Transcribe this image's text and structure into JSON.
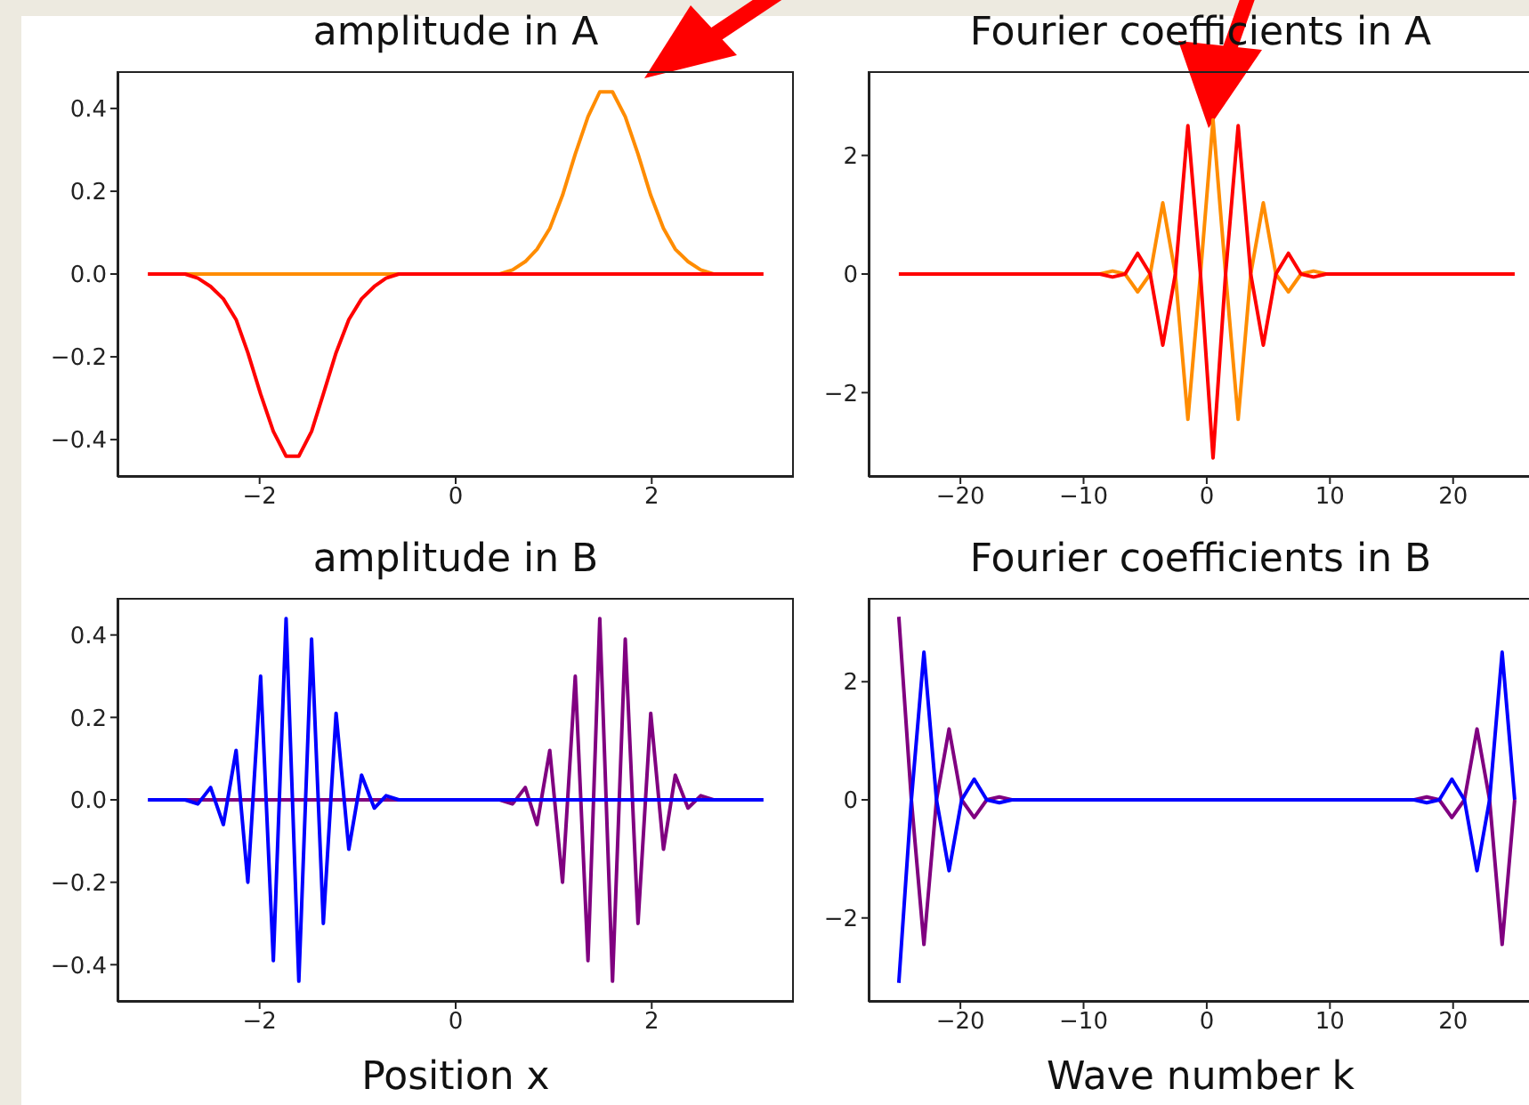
{
  "chart_data": [
    {
      "type": "line",
      "title": "amplitude in A",
      "x": [
        -3.14,
        -3.01,
        -2.89,
        -2.76,
        -2.63,
        -2.5,
        -2.37,
        -2.24,
        -2.12,
        -1.99,
        -1.86,
        -1.73,
        -1.6,
        -1.47,
        -1.35,
        -1.22,
        -1.09,
        -0.96,
        -0.83,
        -0.71,
        -0.58,
        -0.45,
        -0.32,
        -0.19,
        -0.06,
        0.06,
        0.19,
        0.32,
        0.45,
        0.58,
        0.71,
        0.83,
        0.96,
        1.09,
        1.22,
        1.35,
        1.47,
        1.6,
        1.73,
        1.86,
        1.99,
        2.12,
        2.24,
        2.37,
        2.5,
        2.63,
        2.76,
        2.89,
        3.01,
        3.14
      ],
      "series": [
        {
          "color": "#ff8c00",
          "values": [
            null,
            null,
            0,
            0,
            0,
            0,
            0,
            0,
            0,
            0,
            0,
            0,
            0,
            0,
            0,
            0,
            0,
            0,
            0,
            0,
            0,
            0,
            0,
            0,
            0,
            0,
            0,
            0,
            0,
            0.01,
            0.03,
            0.06,
            0.11,
            0.19,
            0.29,
            0.38,
            0.44,
            0.44,
            0.38,
            0.29,
            0.19,
            0.11,
            0.06,
            0.03,
            0.01,
            0,
            0,
            null,
            null,
            null
          ]
        },
        {
          "color": "#ff0000",
          "values": [
            0,
            0,
            0,
            0,
            -0.01,
            -0.03,
            -0.06,
            -0.11,
            -0.19,
            -0.29,
            -0.38,
            -0.44,
            -0.44,
            -0.38,
            -0.29,
            -0.19,
            -0.11,
            -0.06,
            -0.03,
            -0.01,
            0,
            0,
            0,
            0,
            0,
            0,
            0,
            0,
            0,
            0,
            0,
            0,
            0,
            0,
            0,
            0,
            0,
            0,
            0,
            0,
            0,
            0,
            0,
            0,
            0,
            0,
            0,
            0,
            0,
            0
          ]
        }
      ],
      "xlim": [
        -3.45,
        3.45
      ],
      "ylim": [
        -0.49,
        0.49
      ],
      "xticks": [
        {
          "value": -2,
          "label": "−2"
        },
        0,
        2
      ],
      "yticks": [
        {
          "value": -0.4,
          "label": "−0.4"
        },
        {
          "value": -0.2,
          "label": "−0.2"
        },
        {
          "value": 0,
          "label": "0.0"
        },
        0.2,
        0.4
      ]
    },
    {
      "type": "line",
      "title": "Fourier coefficients in A",
      "x": [
        -25,
        -23.98,
        -22.96,
        -21.94,
        -20.92,
        -19.9,
        -18.88,
        -17.86,
        -16.84,
        -15.82,
        -14.8,
        -13.78,
        -12.76,
        -11.73,
        -10.71,
        -9.69,
        -8.67,
        -7.65,
        -6.63,
        -5.61,
        -4.59,
        -3.57,
        -2.55,
        -1.53,
        -0.51,
        0.51,
        1.53,
        2.55,
        3.57,
        4.59,
        5.61,
        6.63,
        7.65,
        8.67,
        9.69,
        10.71,
        11.73,
        12.76,
        13.78,
        14.8,
        15.82,
        16.84,
        17.86,
        18.88,
        19.9,
        20.92,
        21.94,
        22.96,
        23.98,
        25
      ],
      "series": [
        {
          "color": "#ff8c00",
          "values": [
            null,
            null,
            null,
            null,
            null,
            null,
            null,
            null,
            null,
            null,
            null,
            null,
            null,
            null,
            null,
            null,
            0,
            0.05,
            0,
            -0.3,
            0,
            1.2,
            0,
            -2.45,
            0,
            2.6,
            0,
            -2.45,
            0,
            1.2,
            0,
            -0.3,
            0,
            0.05,
            0,
            null,
            null,
            null,
            null,
            null,
            null,
            null,
            null,
            null,
            null,
            null,
            null,
            null,
            null,
            null
          ]
        },
        {
          "color": "#ff0000",
          "values": [
            0,
            0,
            0,
            0,
            0,
            0,
            0,
            0,
            0,
            0,
            0,
            0,
            0,
            0,
            0,
            0,
            0,
            -0.05,
            0,
            0.35,
            0,
            -1.2,
            0,
            2.5,
            0,
            -3.1,
            0,
            2.5,
            0,
            -1.2,
            0,
            0.35,
            0,
            -0.05,
            0,
            0,
            0,
            0,
            0,
            0,
            0,
            0,
            0,
            0,
            0,
            0,
            0,
            0,
            0,
            0
          ]
        }
      ],
      "xlim": [
        -27.45,
        26.45
      ],
      "ylim": [
        -3.42,
        3.42
      ],
      "xticks": [
        {
          "value": -20,
          "label": "−20"
        },
        {
          "value": -10,
          "label": "−10"
        },
        0,
        10,
        20
      ],
      "yticks": [
        {
          "value": -2,
          "label": "−2"
        },
        0,
        2
      ]
    },
    {
      "type": "line",
      "title": "amplitude in B",
      "xlabel": "Position x",
      "x": [
        -3.14,
        -3.01,
        -2.89,
        -2.76,
        -2.63,
        -2.5,
        -2.37,
        -2.24,
        -2.12,
        -1.99,
        -1.86,
        -1.73,
        -1.6,
        -1.47,
        -1.35,
        -1.22,
        -1.09,
        -0.96,
        -0.83,
        -0.71,
        -0.58,
        -0.45,
        -0.32,
        -0.19,
        -0.06,
        0.06,
        0.19,
        0.32,
        0.45,
        0.58,
        0.71,
        0.83,
        0.96,
        1.09,
        1.22,
        1.35,
        1.47,
        1.6,
        1.73,
        1.86,
        1.99,
        2.12,
        2.24,
        2.37,
        2.5,
        2.63,
        2.76,
        2.89,
        3.01,
        3.14
      ],
      "series": [
        {
          "color": "#800080",
          "values": [
            null,
            null,
            0,
            0,
            0,
            0,
            0,
            0,
            0,
            0,
            0,
            0,
            0,
            0,
            0,
            0,
            0,
            0,
            0,
            0,
            0,
            0,
            0,
            0,
            0,
            0,
            0,
            0,
            0,
            -0.01,
            0.03,
            -0.06,
            0.12,
            -0.2,
            0.3,
            -0.39,
            0.44,
            -0.44,
            0.39,
            -0.3,
            0.21,
            -0.12,
            0.06,
            -0.02,
            0.01,
            0,
            0,
            null,
            null,
            null
          ]
        },
        {
          "color": "#0000ff",
          "values": [
            0,
            0,
            0,
            0,
            -0.01,
            0.03,
            -0.06,
            0.12,
            -0.2,
            0.3,
            -0.39,
            0.44,
            -0.44,
            0.39,
            -0.3,
            0.21,
            -0.12,
            0.06,
            -0.02,
            0.01,
            0,
            0,
            0,
            0,
            0,
            0,
            0,
            0,
            0,
            0,
            0,
            0,
            0,
            0,
            0,
            0,
            0,
            0,
            0,
            0,
            0,
            0,
            0,
            0,
            0,
            0,
            0,
            0,
            0,
            0
          ]
        }
      ],
      "xlim": [
        -3.45,
        3.45
      ],
      "ylim": [
        -0.49,
        0.49
      ],
      "xticks": [
        {
          "value": -2,
          "label": "−2"
        },
        0,
        2
      ],
      "yticks": [
        {
          "value": -0.4,
          "label": "−0.4"
        },
        {
          "value": -0.2,
          "label": "−0.2"
        },
        {
          "value": 0,
          "label": "0.0"
        },
        0.2,
        0.4
      ]
    },
    {
      "type": "line",
      "title": "Fourier coefficients in B",
      "xlabel": "Wave number k",
      "x": [
        -25,
        -23.98,
        -22.96,
        -21.94,
        -20.92,
        -19.9,
        -18.88,
        -17.86,
        -16.84,
        -15.82,
        -14.8,
        -13.78,
        -12.76,
        -11.73,
        -10.71,
        -9.69,
        -8.67,
        -7.65,
        -6.63,
        -5.61,
        -4.59,
        -3.57,
        -2.55,
        -1.53,
        -0.51,
        0.51,
        1.53,
        2.55,
        3.57,
        4.59,
        5.61,
        6.63,
        7.65,
        8.67,
        9.69,
        10.71,
        11.73,
        12.76,
        13.78,
        14.8,
        15.82,
        16.84,
        17.86,
        18.88,
        19.9,
        20.92,
        21.94,
        22.96,
        23.98,
        25
      ],
      "series": [
        {
          "color": "#800080",
          "values": [
            3.1,
            0,
            -2.45,
            0,
            1.2,
            0,
            -0.3,
            0,
            0.05,
            0,
            null,
            null,
            null,
            null,
            null,
            null,
            null,
            null,
            null,
            null,
            null,
            null,
            null,
            null,
            null,
            null,
            null,
            null,
            null,
            null,
            null,
            null,
            null,
            null,
            null,
            null,
            null,
            null,
            null,
            null,
            null,
            0,
            0.05,
            0,
            -0.3,
            0,
            1.2,
            0,
            -2.45,
            0
          ]
        },
        {
          "color": "#0000ff",
          "values": [
            -3.1,
            0,
            2.5,
            0,
            -1.2,
            0,
            0.35,
            0,
            -0.05,
            0,
            0,
            0,
            0,
            0,
            0,
            0,
            0,
            0,
            0,
            0,
            0,
            0,
            0,
            0,
            0,
            0,
            0,
            0,
            0,
            0,
            0,
            0,
            0,
            0,
            0,
            0,
            0,
            0,
            0,
            0,
            0,
            0,
            -0.05,
            0,
            0.35,
            0,
            -1.2,
            0,
            2.5,
            0
          ]
        }
      ],
      "xlim": [
        -27.45,
        26.45
      ],
      "ylim": [
        -3.42,
        3.42
      ],
      "xticks": [
        {
          "value": -20,
          "label": "−20"
        },
        {
          "value": -10,
          "label": "−10"
        },
        0,
        10,
        20
      ],
      "yticks": [
        {
          "value": -2,
          "label": "−2"
        },
        0,
        2
      ]
    }
  ]
}
